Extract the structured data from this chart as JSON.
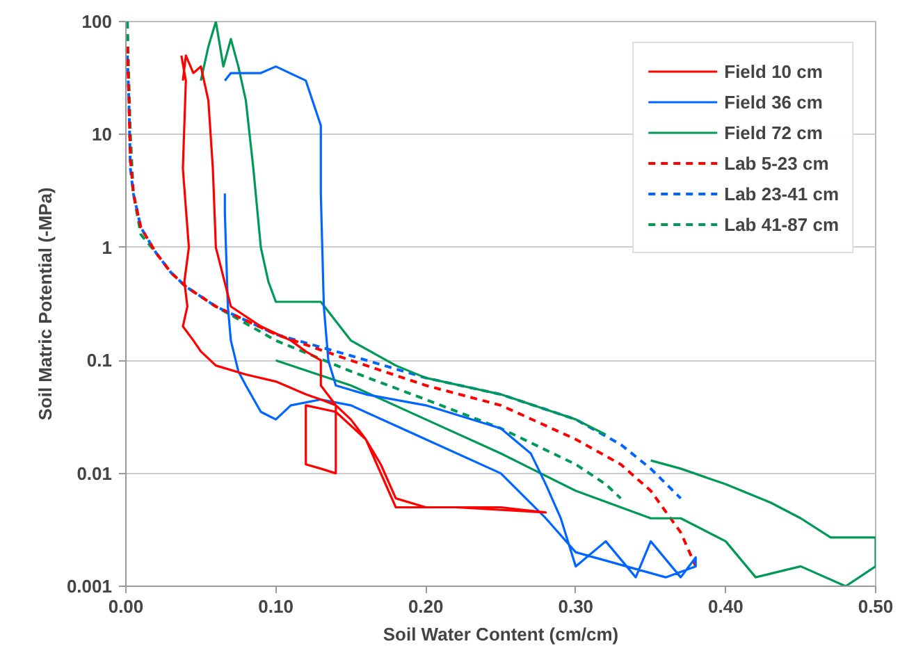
{
  "chart_data": {
    "type": "line",
    "xlabel": "Soil Water Content (cm/cm)",
    "ylabel": "Soil Matric Potential (-MPa)",
    "log": "y",
    "grid": "y",
    "legend": "top right",
    "xlim": [
      0,
      0.5
    ],
    "ylim": [
      0.001,
      100
    ],
    "xticks": [
      {
        "value": 0,
        "label": "0.00"
      },
      {
        "value": 0.1,
        "label": "0.10"
      },
      {
        "value": 0.2,
        "label": "0.20"
      },
      {
        "value": 0.3,
        "label": "0.30"
      },
      {
        "value": 0.4,
        "label": "0.40"
      },
      {
        "value": 0.5,
        "label": "0.50"
      }
    ],
    "yticks": [
      0.001,
      0.01,
      0.1,
      1,
      10,
      100
    ],
    "series": [
      {
        "name": "Field 10 cm",
        "color": "#ff0000",
        "line_style": "solid",
        "x": [
          0.037,
          0.04,
          0.038,
          0.042,
          0.039,
          0.041,
          0.038,
          0.045,
          0.05,
          0.06,
          0.08,
          0.1,
          0.12,
          0.13,
          0.14,
          0.15,
          0.16,
          0.17,
          0.18,
          0.2,
          0.25,
          0.28,
          0.28,
          0.22,
          0.18,
          0.16,
          0.14,
          0.12,
          0.12,
          0.13,
          0.14,
          0.14,
          0.13,
          0.13,
          0.12,
          0.11,
          0.09,
          0.07,
          0.06,
          0.058,
          0.055,
          0.05,
          0.045,
          0.04,
          0.038
        ],
        "values": [
          50,
          30,
          5,
          1,
          0.5,
          0.3,
          0.2,
          0.15,
          0.12,
          0.09,
          0.075,
          0.065,
          0.05,
          0.045,
          0.04,
          0.03,
          0.02,
          0.012,
          0.006,
          0.005,
          0.005,
          0.0045,
          0.0045,
          0.005,
          0.005,
          0.02,
          0.035,
          0.04,
          0.012,
          0.011,
          0.01,
          0.04,
          0.06,
          0.1,
          0.12,
          0.15,
          0.2,
          0.3,
          1,
          5,
          20,
          40,
          35,
          50,
          30
        ]
      },
      {
        "name": "Field 36 cm",
        "color": "#0066ff",
        "line_style": "solid",
        "x": [
          0.066,
          0.07,
          0.09,
          0.1,
          0.12,
          0.13,
          0.13,
          0.132,
          0.135,
          0.14,
          0.16,
          0.2,
          0.25,
          0.27,
          0.28,
          0.29,
          0.3,
          0.32,
          0.34,
          0.35,
          0.37,
          0.38,
          0.38,
          0.36,
          0.3,
          0.28,
          0.25,
          0.2,
          0.15,
          0.13,
          0.11,
          0.1,
          0.09,
          0.08,
          0.075,
          0.07,
          0.068,
          0.066,
          0.066
        ],
        "values": [
          30,
          35,
          35,
          40,
          30,
          12,
          3,
          0.3,
          0.1,
          0.06,
          0.05,
          0.04,
          0.025,
          0.015,
          0.008,
          0.004,
          0.0015,
          0.0025,
          0.0012,
          0.0025,
          0.0012,
          0.0018,
          0.0015,
          0.0012,
          0.002,
          0.004,
          0.01,
          0.02,
          0.04,
          0.045,
          0.04,
          0.03,
          0.035,
          0.06,
          0.08,
          0.15,
          0.3,
          2,
          3
        ]
      },
      {
        "name": "Field 72 cm",
        "color": "#009955",
        "line_style": "solid",
        "x": [
          0.05,
          0.055,
          0.06,
          0.065,
          0.07,
          0.075,
          0.08,
          0.085,
          0.09,
          0.095,
          0.1,
          0.13,
          0.15,
          0.18,
          0.2,
          0.25,
          0.3,
          0.32,
          0.33,
          0.35,
          0.37,
          0.4,
          0.43,
          0.45,
          0.47,
          0.5,
          0.5,
          0.48,
          0.45,
          0.42,
          0.4,
          0.37,
          0.35,
          0.3,
          0.25,
          0.2,
          0.15,
          0.1
        ],
        "values": [
          30,
          60,
          100,
          40,
          70,
          40,
          20,
          5,
          1,
          0.5,
          0.33,
          0.33,
          0.15,
          0.09,
          0.07,
          0.05,
          0.03,
          0.022,
          null,
          0.013,
          0.011,
          0.008,
          0.0055,
          0.004,
          0.0027,
          0.0027,
          0.0015,
          0.001,
          0.0015,
          0.0012,
          0.0025,
          0.004,
          0.004,
          0.007,
          0.015,
          0.03,
          0.06,
          0.1
        ]
      },
      {
        "name": "Lab 5-23 cm",
        "color": "#ff0000",
        "line_style": "dashed",
        "x": [
          0.001,
          0.002,
          0.003,
          0.005,
          0.01,
          0.02,
          0.03,
          0.04,
          0.06,
          0.1,
          0.15,
          0.2,
          0.25,
          0.3,
          0.33,
          0.35,
          0.37,
          0.38
        ],
        "values": [
          60,
          20,
          6,
          3,
          1.5,
          0.9,
          0.6,
          0.45,
          0.3,
          0.17,
          0.1,
          0.06,
          0.04,
          0.02,
          0.012,
          0.007,
          0.003,
          0.0015
        ]
      },
      {
        "name": "Lab 23-41 cm",
        "color": "#0066ff",
        "line_style": "dashed",
        "x": [
          0.001,
          0.002,
          0.003,
          0.005,
          0.01,
          0.02,
          0.03,
          0.04,
          0.06,
          0.1,
          0.15,
          0.2,
          0.25,
          0.3,
          0.33,
          0.35,
          0.37
        ],
        "values": [
          50,
          20,
          5,
          3,
          1.5,
          0.9,
          0.6,
          0.45,
          0.3,
          0.17,
          0.11,
          0.07,
          0.05,
          0.03,
          0.018,
          0.011,
          0.006
        ]
      },
      {
        "name": "Lab 41-87 cm",
        "color": "#009955",
        "line_style": "dashed",
        "x": [
          0.001,
          0.002,
          0.003,
          0.005,
          0.01,
          0.02,
          0.03,
          0.04,
          0.06,
          0.1,
          0.15,
          0.2,
          0.25,
          0.3,
          0.32,
          0.33
        ],
        "values": [
          100,
          30,
          10,
          3,
          1.3,
          0.9,
          0.6,
          0.45,
          0.3,
          0.15,
          0.08,
          0.045,
          0.025,
          0.012,
          0.008,
          0.006
        ]
      }
    ]
  }
}
